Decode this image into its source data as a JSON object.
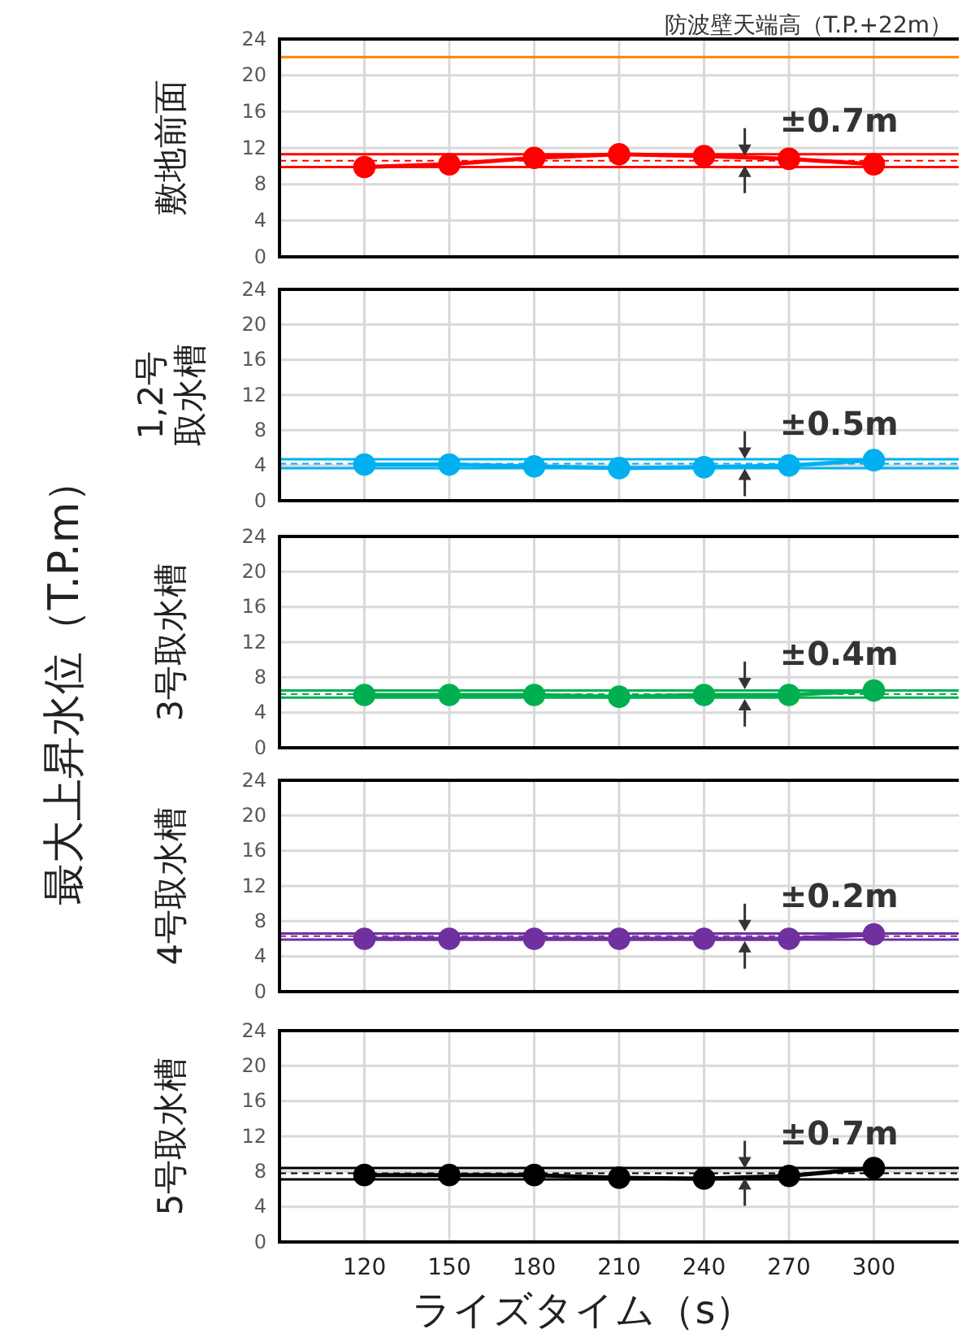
{
  "chart_data": [
    {
      "type": "line",
      "ylabel": "敷地前面",
      "x": [
        120,
        150,
        180,
        210,
        240,
        270,
        300
      ],
      "xlim": [
        90,
        330
      ],
      "xticks": [
        120,
        150,
        180,
        210,
        240,
        270,
        300
      ],
      "ylim": [
        0,
        24
      ],
      "yticks": [
        0,
        4,
        8,
        12,
        16,
        20,
        24
      ],
      "grid": true,
      "marker": "circle",
      "tick_labels": "y",
      "series": [
        {
          "color": "#ff0000",
          "values": [
            9.9,
            10.2,
            10.9,
            11.3,
            11.1,
            10.8,
            10.2
          ]
        }
      ],
      "ref_lines": [
        {
          "axis": "y",
          "value": 22,
          "label": "防波壁天端高（T.P.+22m）",
          "color": "#ff8000"
        },
        {
          "axis": "y",
          "value": 11.3,
          "color": "#ff0000"
        },
        {
          "axis": "y",
          "value": 10.6,
          "color": "#ff0000",
          "line_style": "dashed"
        },
        {
          "axis": "y",
          "value": 9.9,
          "color": "#ff0000"
        }
      ],
      "annotations": [
        "最大上昇水位（T.P.m）",
        {
          "text": "±0.7m",
          "y": 10.6
        }
      ]
    },
    {
      "type": "line",
      "ylabel": "1,2号取水槽",
      "x": [
        120,
        150,
        180,
        210,
        240,
        270,
        300
      ],
      "xlim": [
        90,
        330
      ],
      "xticks": [
        120,
        150,
        180,
        210,
        240,
        270,
        300
      ],
      "ylim": [
        0,
        24
      ],
      "yticks": [
        0,
        4,
        8,
        12,
        16,
        20,
        24
      ],
      "grid": true,
      "marker": "circle",
      "tick_labels": "y",
      "series": [
        {
          "color": "#00b0f0",
          "values": [
            4.1,
            4.1,
            3.9,
            3.7,
            3.8,
            4.0,
            4.6
          ]
        }
      ],
      "ref_lines": [
        {
          "axis": "y",
          "value": 4.7,
          "color": "#00b0f0"
        },
        {
          "axis": "y",
          "value": 4.2,
          "color": "#00b0f0",
          "line_style": "dashed"
        },
        {
          "axis": "y",
          "value": 3.7,
          "color": "#00b0f0"
        }
      ],
      "annotations": [
        {
          "text": "±0.5m",
          "y": 4.2
        }
      ]
    },
    {
      "type": "line",
      "ylabel": "3号取水槽",
      "x": [
        120,
        150,
        180,
        210,
        240,
        270,
        300
      ],
      "xlim": [
        90,
        330
      ],
      "xticks": [
        120,
        150,
        180,
        210,
        240,
        270,
        300
      ],
      "ylim": [
        0,
        24
      ],
      "yticks": [
        0,
        4,
        8,
        12,
        16,
        20,
        24
      ],
      "grid": true,
      "marker": "circle",
      "tick_labels": "y",
      "series": [
        {
          "color": "#00b050",
          "values": [
            6.0,
            6.0,
            6.0,
            5.8,
            6.0,
            6.0,
            6.5
          ]
        }
      ],
      "ref_lines": [
        {
          "axis": "y",
          "value": 6.5,
          "color": "#00b050"
        },
        {
          "axis": "y",
          "value": 6.1,
          "color": "#00b050",
          "line_style": "dashed"
        },
        {
          "axis": "y",
          "value": 5.7,
          "color": "#00b050"
        }
      ],
      "annotations": [
        {
          "text": "±0.4m",
          "y": 6.1
        }
      ]
    },
    {
      "type": "line",
      "ylabel": "4号取水槽",
      "x": [
        120,
        150,
        180,
        210,
        240,
        270,
        300
      ],
      "xlim": [
        90,
        330
      ],
      "xticks": [
        120,
        150,
        180,
        210,
        240,
        270,
        300
      ],
      "ylim": [
        0,
        24
      ],
      "yticks": [
        0,
        4,
        8,
        12,
        16,
        20,
        24
      ],
      "grid": true,
      "marker": "circle",
      "tick_labels": "y",
      "series": [
        {
          "color": "#7030a0",
          "values": [
            6.0,
            6.0,
            6.0,
            6.0,
            6.0,
            6.0,
            6.5
          ]
        }
      ],
      "ref_lines": [
        {
          "axis": "y",
          "value": 6.6,
          "color": "#7030a0"
        },
        {
          "axis": "y",
          "value": 6.3,
          "color": "#7030a0",
          "line_style": "dashed"
        },
        {
          "axis": "y",
          "value": 5.9,
          "color": "#7030a0"
        }
      ],
      "annotations": [
        {
          "text": "±0.2m",
          "y": 6.3
        }
      ]
    },
    {
      "type": "line",
      "ylabel": "5号取水槽",
      "xlabel": "ライズタイム（s）",
      "x": [
        120,
        150,
        180,
        210,
        240,
        270,
        300
      ],
      "xlim": [
        90,
        330
      ],
      "xticks": [
        120,
        150,
        180,
        210,
        240,
        270,
        300
      ],
      "ylim": [
        0,
        24
      ],
      "yticks": [
        0,
        4,
        8,
        12,
        16,
        20,
        24
      ],
      "grid": true,
      "marker": "circle",
      "series": [
        {
          "color": "#000000",
          "values": [
            7.6,
            7.6,
            7.6,
            7.3,
            7.2,
            7.5,
            8.4
          ]
        }
      ],
      "ref_lines": [
        {
          "axis": "y",
          "value": 8.4,
          "color": "#000000"
        },
        {
          "axis": "y",
          "value": 7.8,
          "color": "#000000",
          "line_style": "dashed"
        },
        {
          "axis": "y",
          "value": 7.1,
          "color": "#000000"
        }
      ],
      "annotations": [
        {
          "text": "±0.7m",
          "y": 7.8
        }
      ]
    }
  ]
}
